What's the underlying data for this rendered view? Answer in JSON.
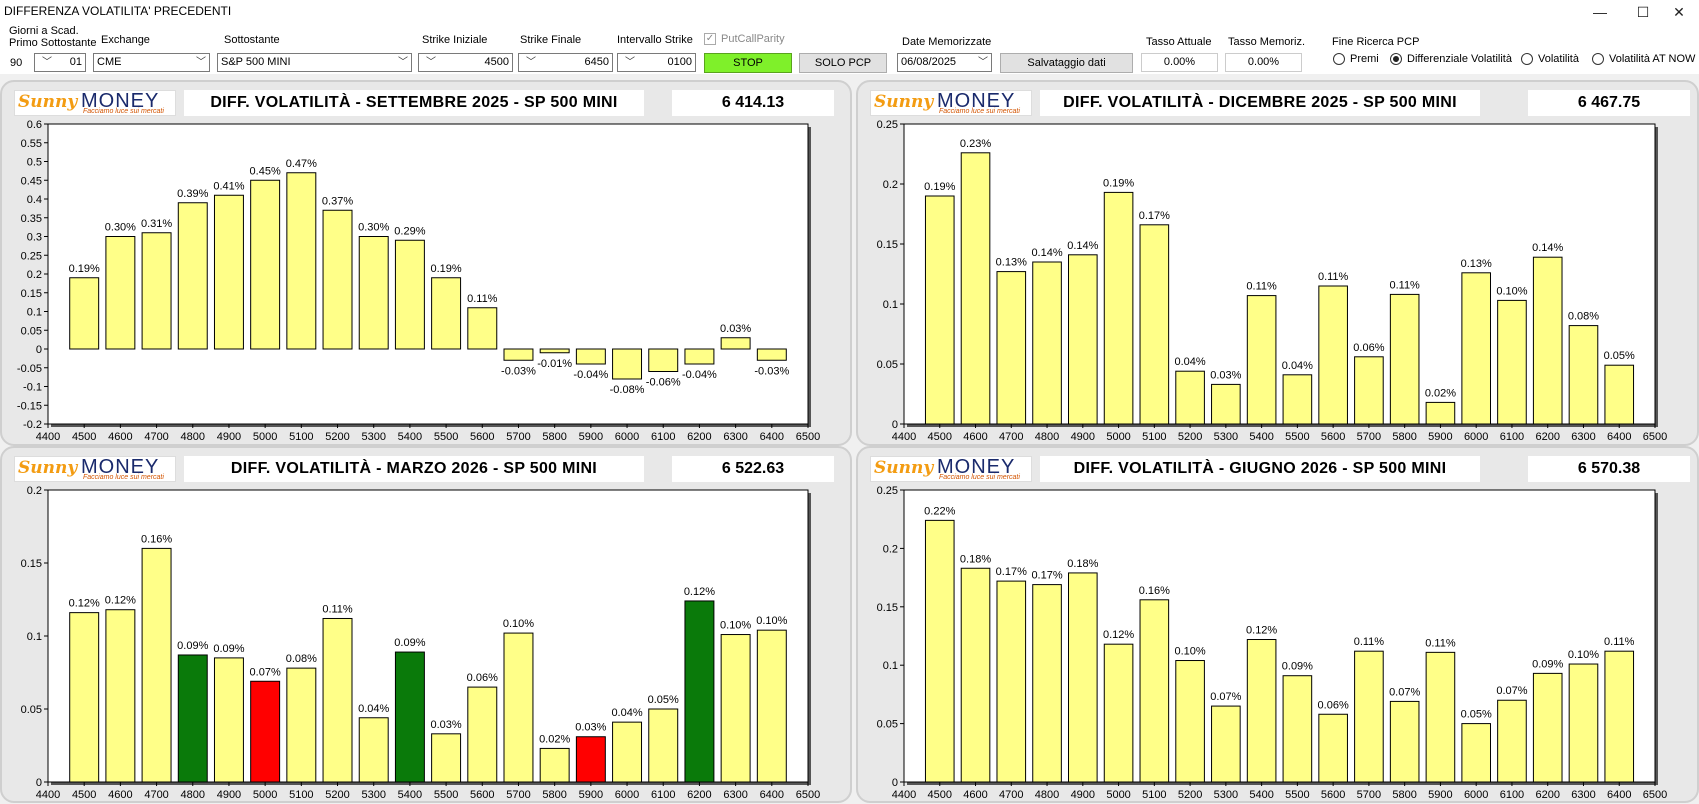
{
  "window": {
    "title": "DIFFERENZA VOLATILITA' PRECEDENTI",
    "minimize": "—",
    "maximize": "☐",
    "close": "✕"
  },
  "toolbar": {
    "giorni_label_1": "Giorni a Scad.",
    "giorni_label_2": "Primo Sottostante",
    "giorni_value": "90",
    "giorni_select": "01",
    "exchange_label": "Exchange",
    "exchange_value": "CME",
    "sottostante_label": "Sottostante",
    "sottostante_value": "S&P 500 MINI",
    "strike_iniziale_label": "Strike Iniziale",
    "strike_iniziale_value": "4500",
    "strike_finale_label": "Strike Finale",
    "strike_finale_value": "6450",
    "intervallo_label": "Intervallo Strike",
    "intervallo_value": "0100",
    "putcall_label": "PutCallParity",
    "stop_label": "STOP",
    "solo_pcp_label": "SOLO PCP",
    "date_label": "Date Memorizzate",
    "date_value": "06/08/2025",
    "salvataggio_label": "Salvataggio dati",
    "tasso_attuale_label": "Tasso Attuale",
    "tasso_attuale_value": "0.00%",
    "tasso_memoriz_label": "Tasso Memoriz.",
    "tasso_memoriz_value": "0.00%",
    "fine_ricerca_label": "Fine Ricerca PCP",
    "radio_premi": "Premi",
    "radio_diff": "Differenziale Volatilità",
    "radio_vol": "Volatilità",
    "radio_vol_atm": "Volatilità AT NOW"
  },
  "logo": {
    "brand_1": "Sunny",
    "brand_2": "MONEY",
    "tagline": "Facciamo luce sui mercati"
  },
  "panels": [
    {
      "title": "DIFF. VOLATILITÀ - SETTEMBRE 2025 - SP 500 MINI",
      "price": "6 414.13"
    },
    {
      "title": "DIFF. VOLATILITÀ - DICEMBRE 2025 - SP 500 MINI",
      "price": "6 467.75"
    },
    {
      "title": "DIFF. VOLATILITÀ - MARZO 2026 - SP 500 MINI",
      "price": "6 522.63"
    },
    {
      "title": "DIFF. VOLATILITÀ - GIUGNO 2026 - SP 500 MINI",
      "price": "6 570.38"
    }
  ],
  "colors": {
    "bar": "#ffff88",
    "green": "#0a7a0a",
    "red": "#ff0000"
  },
  "chart_data": [
    {
      "type": "bar",
      "title": "DIFF. VOLATILITÀ - SETTEMBRE 2025 - SP 500 MINI",
      "x_ticks": [
        4400,
        4500,
        4600,
        4700,
        4800,
        4900,
        5000,
        5100,
        5200,
        5300,
        5400,
        5500,
        5600,
        5700,
        5800,
        5900,
        6000,
        6100,
        6200,
        6300,
        6400,
        6500
      ],
      "ylim": [
        -0.2,
        0.6
      ],
      "y_ticks": [
        "-0.2",
        "-0.15",
        "-0.1",
        "-0.05",
        "0",
        "0.05",
        "0.1",
        "0.15",
        "0.2",
        "0.25",
        "0.3",
        "0.35",
        "0.4",
        "0.45",
        "0.5",
        "0.55",
        "0.6"
      ],
      "categories": [
        4500,
        4600,
        4700,
        4800,
        4900,
        5000,
        5100,
        5200,
        5300,
        5400,
        5500,
        5600,
        5700,
        5800,
        5900,
        6000,
        6100,
        6200,
        6300,
        6400
      ],
      "values": [
        0.19,
        0.3,
        0.31,
        0.39,
        0.41,
        0.45,
        0.47,
        0.37,
        0.3,
        0.29,
        0.19,
        0.11,
        -0.03,
        -0.01,
        -0.04,
        -0.08,
        -0.06,
        -0.04,
        0.03,
        -0.03
      ],
      "labels": [
        "0.19%",
        "0.30%",
        "0.31%",
        "0.39%",
        "0.41%",
        "0.45%",
        "0.47%",
        "0.37%",
        "0.30%",
        "0.29%",
        "0.19%",
        "0.11%",
        "-0.03%",
        "-0.01%",
        "-0.04%",
        "-0.08%",
        "-0.06%",
        "-0.04%",
        "0.03%",
        "-0.03%"
      ],
      "bar_colors": {}
    },
    {
      "type": "bar",
      "title": "DIFF. VOLATILITÀ - DICEMBRE 2025 - SP 500 MINI",
      "x_ticks": [
        4400,
        4500,
        4600,
        4700,
        4800,
        4900,
        5000,
        5100,
        5200,
        5300,
        5400,
        5500,
        5600,
        5700,
        5800,
        5900,
        6000,
        6100,
        6200,
        6300,
        6400,
        6500
      ],
      "ylim": [
        0,
        0.25
      ],
      "y_ticks": [
        "0",
        "0.05",
        "0.1",
        "0.15",
        "0.2",
        "0.25"
      ],
      "categories": [
        4500,
        4600,
        4700,
        4800,
        4900,
        5000,
        5100,
        5200,
        5300,
        5400,
        5500,
        5600,
        5700,
        5800,
        5900,
        6000,
        6100,
        6200,
        6300,
        6400
      ],
      "values": [
        0.19,
        0.226,
        0.127,
        0.135,
        0.141,
        0.193,
        0.166,
        0.044,
        0.033,
        0.107,
        0.041,
        0.115,
        0.056,
        0.108,
        0.018,
        0.126,
        0.103,
        0.139,
        0.082,
        0.049
      ],
      "labels": [
        "0.19%",
        "0.23%",
        "0.13%",
        "0.14%",
        "0.14%",
        "0.19%",
        "0.17%",
        "0.04%",
        "0.03%",
        "0.11%",
        "0.04%",
        "0.11%",
        "0.06%",
        "0.11%",
        "0.02%",
        "0.13%",
        "0.10%",
        "0.14%",
        "0.08%",
        "0.05%"
      ],
      "bar_colors": {}
    },
    {
      "type": "bar",
      "title": "DIFF. VOLATILITÀ - MARZO 2026 - SP 500 MINI",
      "x_ticks": [
        4400,
        4500,
        4600,
        4700,
        4800,
        4900,
        5000,
        5100,
        5200,
        5300,
        5400,
        5500,
        5600,
        5700,
        5800,
        5900,
        6000,
        6100,
        6200,
        6300,
        6400,
        6500
      ],
      "ylim": [
        0,
        0.2
      ],
      "y_ticks": [
        "0",
        "0.05",
        "0.1",
        "0.15",
        "0.2"
      ],
      "categories": [
        4500,
        4600,
        4700,
        4800,
        4900,
        5000,
        5100,
        5200,
        5300,
        5400,
        5500,
        5600,
        5700,
        5800,
        5900,
        6000,
        6100,
        6200,
        6300,
        6400
      ],
      "values": [
        0.116,
        0.118,
        0.16,
        0.087,
        0.085,
        0.069,
        0.078,
        0.112,
        0.044,
        0.089,
        0.033,
        0.065,
        0.102,
        0.023,
        0.031,
        0.041,
        0.05,
        0.124,
        0.101,
        0.104
      ],
      "labels": [
        "0.12%",
        "0.12%",
        "0.16%",
        "0.09%",
        "0.09%",
        "0.07%",
        "0.08%",
        "0.11%",
        "0.04%",
        "0.09%",
        "0.03%",
        "0.06%",
        "0.10%",
        "0.02%",
        "0.03%",
        "0.04%",
        "0.05%",
        "0.12%",
        "0.10%",
        "0.10%"
      ],
      "bar_colors": {
        "4800": "green",
        "5000": "red",
        "5400": "green",
        "5900": "red",
        "6200": "green"
      }
    },
    {
      "type": "bar",
      "title": "DIFF. VOLATILITÀ - GIUGNO 2026 - SP 500 MINI",
      "x_ticks": [
        4400,
        4500,
        4600,
        4700,
        4800,
        4900,
        5000,
        5100,
        5200,
        5300,
        5400,
        5500,
        5600,
        5700,
        5800,
        5900,
        6000,
        6100,
        6200,
        6300,
        6400,
        6500
      ],
      "ylim": [
        0,
        0.25
      ],
      "y_ticks": [
        "0",
        "0.05",
        "0.1",
        "0.15",
        "0.2",
        "0.25"
      ],
      "categories": [
        4500,
        4600,
        4700,
        4800,
        4900,
        5000,
        5100,
        5200,
        5300,
        5400,
        5500,
        5600,
        5700,
        5800,
        5900,
        6000,
        6100,
        6200,
        6300,
        6400
      ],
      "values": [
        0.224,
        0.183,
        0.172,
        0.169,
        0.179,
        0.118,
        0.156,
        0.104,
        0.065,
        0.122,
        0.091,
        0.058,
        0.112,
        0.069,
        0.111,
        0.05,
        0.07,
        0.093,
        0.101,
        0.112
      ],
      "labels": [
        "0.22%",
        "0.18%",
        "0.17%",
        "0.17%",
        "0.18%",
        "0.12%",
        "0.16%",
        "0.10%",
        "0.07%",
        "0.12%",
        "0.09%",
        "0.06%",
        "0.11%",
        "0.07%",
        "0.11%",
        "0.05%",
        "0.07%",
        "0.09%",
        "0.10%",
        "0.11%"
      ],
      "bar_colors": {}
    }
  ]
}
